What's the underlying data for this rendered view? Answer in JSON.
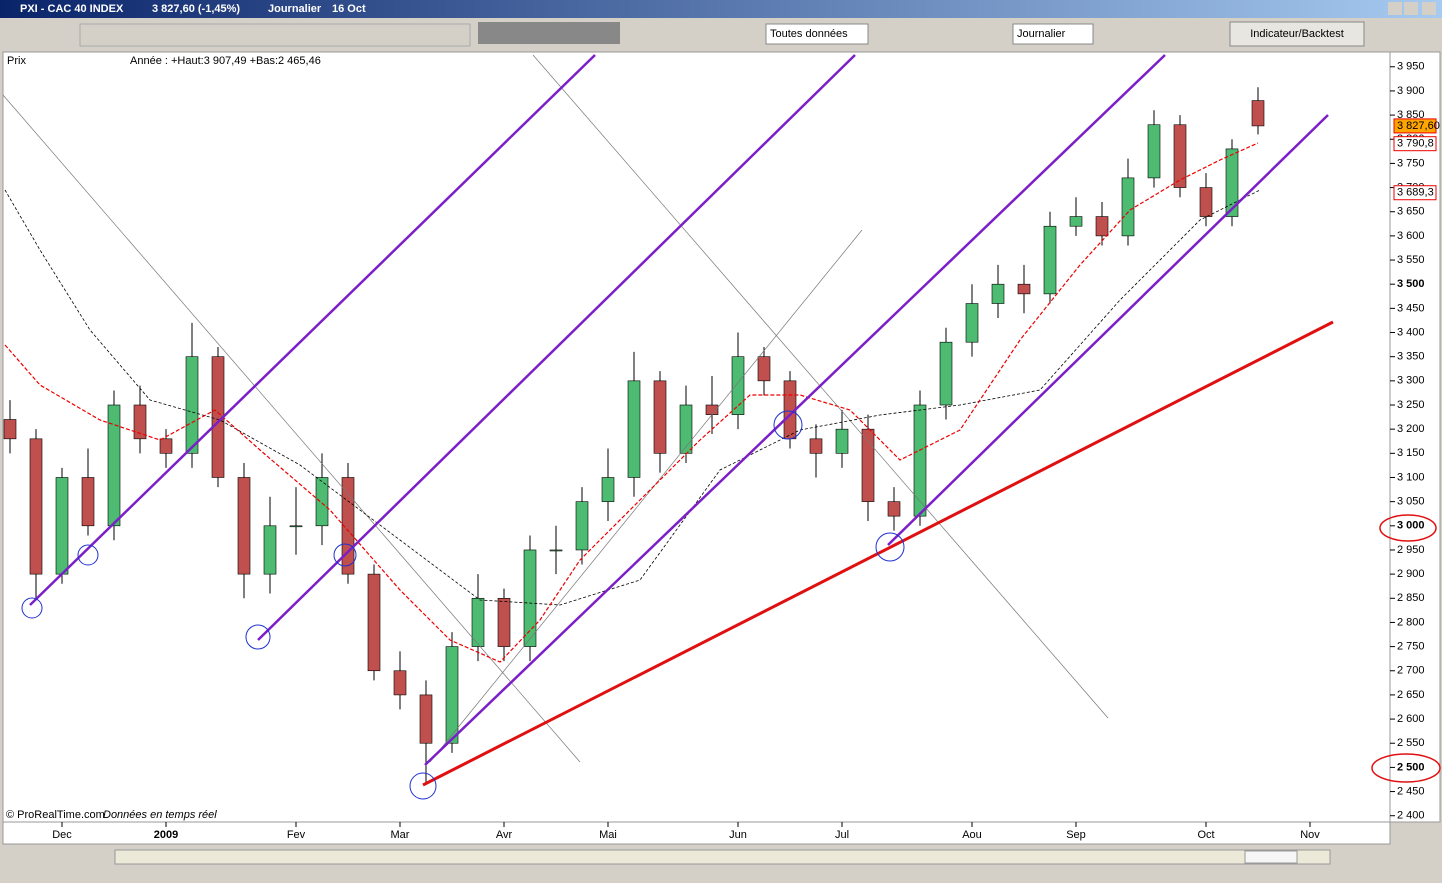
{
  "window": {
    "title": "PXI - CAC 40 INDEX",
    "quote": "3 827,60 (-1,45%)",
    "period": "Journalier",
    "date": "16 Oct"
  },
  "toolbar": {
    "data_select": "Toutes données",
    "period_select": "Journalier",
    "button": "Indicateur/Backtest"
  },
  "chart_header": {
    "label": "Prix",
    "info": "Année : +Haut:3 907,49 +Bas:2 465,46"
  },
  "chart_data": {
    "type": "candlestick",
    "categories": [
      null,
      null,
      "Dec",
      null,
      null,
      null,
      "2009",
      null,
      null,
      null,
      null,
      "Fev",
      null,
      null,
      null,
      "Mar",
      null,
      null,
      null,
      "Avr",
      null,
      null,
      null,
      "Mai",
      null,
      null,
      null,
      null,
      "Jun",
      null,
      null,
      null,
      "Jul",
      null,
      null,
      null,
      null,
      "Aou",
      null,
      null,
      null,
      "Sep",
      null,
      null,
      null,
      null,
      "Oct",
      null,
      null,
      null,
      "Nov"
    ],
    "open": [
      3220,
      3180,
      2900,
      3100,
      3000,
      3250,
      3180,
      3150,
      3350,
      3100,
      2900,
      3000,
      3000,
      3100,
      2900,
      2700,
      2650,
      2550,
      2750,
      2850,
      2750,
      2950,
      2950,
      3050,
      3100,
      3300,
      3150,
      3250,
      3230,
      3350,
      3300,
      3180,
      3150,
      3200,
      3050,
      3020,
      3250,
      3380,
      3460,
      3500,
      3480,
      3620,
      3640,
      3600,
      3720,
      3830,
      3700,
      3640,
      3880,
      null,
      null
    ],
    "high": [
      3260,
      3200,
      3120,
      3160,
      3280,
      3290,
      3200,
      3420,
      3370,
      3130,
      3060,
      3080,
      3150,
      3130,
      2920,
      2740,
      2680,
      2780,
      2900,
      2870,
      2980,
      3000,
      3080,
      3160,
      3360,
      3320,
      3290,
      3310,
      3400,
      3370,
      3320,
      3210,
      3240,
      3230,
      3080,
      3280,
      3410,
      3500,
      3540,
      3540,
      3650,
      3680,
      3670,
      3760,
      3860,
      3850,
      3730,
      3800,
      3907.49,
      null,
      null
    ],
    "low": [
      3150,
      2850,
      2880,
      2980,
      2970,
      3150,
      3120,
      3120,
      3080,
      2850,
      2860,
      2940,
      2960,
      2880,
      2680,
      2620,
      2465.46,
      2530,
      2720,
      2720,
      2720,
      2900,
      2920,
      3010,
      3060,
      3110,
      3130,
      3190,
      3200,
      3270,
      3160,
      3100,
      3120,
      3010,
      2990,
      3000,
      3220,
      3350,
      3430,
      3440,
      3460,
      3600,
      3580,
      3580,
      3700,
      3680,
      3620,
      3620,
      3810,
      null,
      null
    ],
    "close": [
      3180,
      2900,
      3100,
      3000,
      3250,
      3180,
      3150,
      3350,
      3100,
      2900,
      3000,
      3000,
      3100,
      2900,
      2700,
      2650,
      2550,
      2750,
      2850,
      2750,
      2950,
      2950,
      3050,
      3100,
      3300,
      3150,
      3250,
      3230,
      3350,
      3300,
      3180,
      3150,
      3200,
      3050,
      3020,
      3250,
      3380,
      3460,
      3500,
      3480,
      3620,
      3640,
      3600,
      3720,
      3830,
      3700,
      3640,
      3780,
      3827.6,
      null,
      null
    ],
    "up_color": "#4dbb72",
    "down_color": "#c0504d",
    "ylim": [
      2387,
      3964
    ],
    "yticks": [
      {
        "value": 3950,
        "label": "3 950"
      },
      {
        "value": 3900,
        "label": "3 900"
      },
      {
        "value": 3850,
        "label": "3 850"
      },
      {
        "value": 3800,
        "label": "3 800"
      },
      {
        "value": 3750,
        "label": "3 750"
      },
      {
        "value": 3700,
        "label": "3 700"
      },
      {
        "value": 3650,
        "label": "3 650"
      },
      {
        "value": 3600,
        "label": "3 600"
      },
      {
        "value": 3550,
        "label": "3 550"
      },
      {
        "value": 3500,
        "label": "3 500"
      },
      {
        "value": 3450,
        "label": "3 450"
      },
      {
        "value": 3400,
        "label": "3 400"
      },
      {
        "value": 3350,
        "label": "3 350"
      },
      {
        "value": 3300,
        "label": "3 300"
      },
      {
        "value": 3250,
        "label": "3 250"
      },
      {
        "value": 3200,
        "label": "3 200"
      },
      {
        "value": 3150,
        "label": "3 150"
      },
      {
        "value": 3100,
        "label": "3 100"
      },
      {
        "value": 3050,
        "label": "3 050"
      },
      {
        "value": 3000,
        "label": "3 000"
      },
      {
        "value": 2950,
        "label": "2 950"
      },
      {
        "value": 2900,
        "label": "2 900"
      },
      {
        "value": 2850,
        "label": "2 850"
      },
      {
        "value": 2800,
        "label": "2 800"
      },
      {
        "value": 2750,
        "label": "2 750"
      },
      {
        "value": 2700,
        "label": "2 700"
      },
      {
        "value": 2650,
        "label": "2 650"
      },
      {
        "value": 2600,
        "label": "2 600"
      },
      {
        "value": 2550,
        "label": "2 550"
      },
      {
        "value": 2500,
        "label": "2 500"
      },
      {
        "value": 2450,
        "label": "2 450"
      },
      {
        "value": 2400,
        "label": "2 400"
      }
    ],
    "price_labels": [
      {
        "value": 3827.6,
        "label": "3 827,60",
        "color": "#ffa500"
      },
      {
        "value": 3790.8,
        "label": "3 790,8",
        "color": "#ffffff"
      },
      {
        "value": 3689.3,
        "label": "3 689,3",
        "color": "#ffffff"
      }
    ]
  },
  "footer": {
    "credit": "© ProRealTime.com",
    "status": "Données en temps réel"
  }
}
